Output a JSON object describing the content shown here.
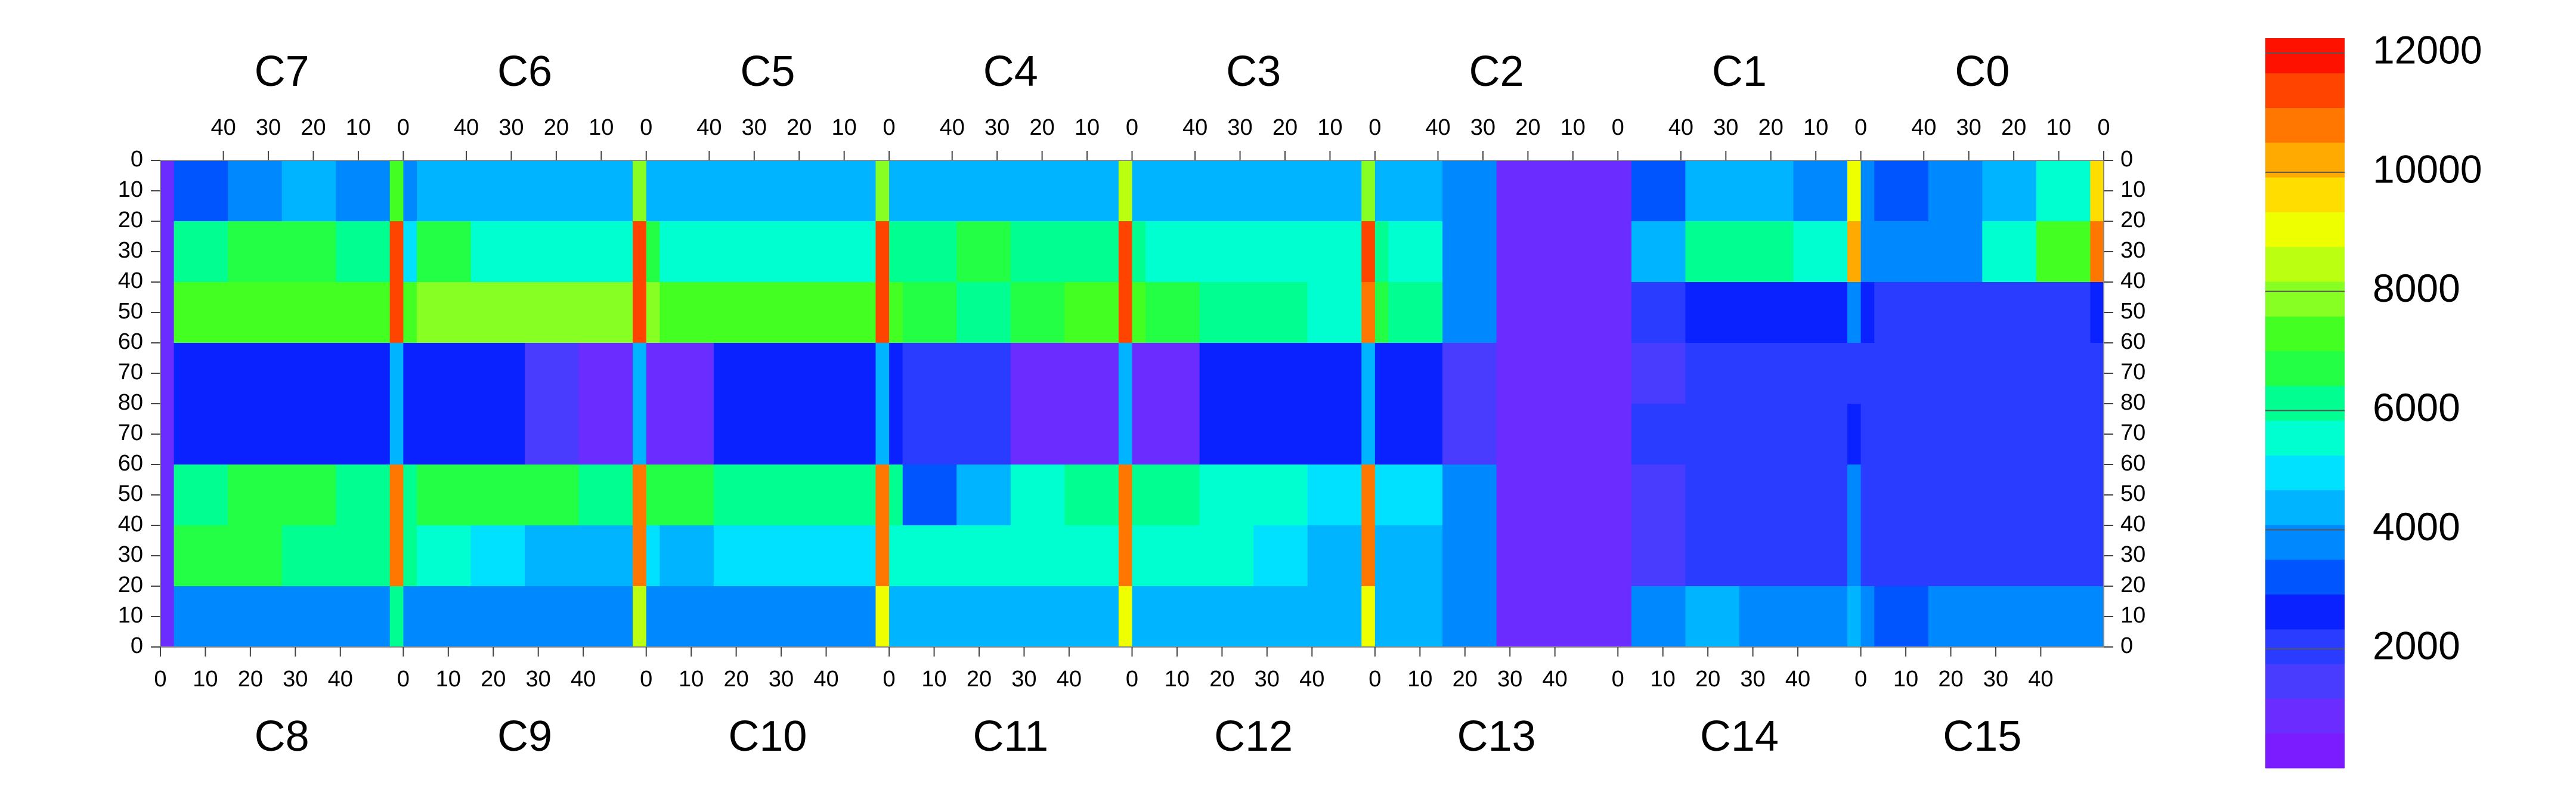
{
  "chart_data": {
    "type": "heatmap",
    "top_labels": [
      "C7",
      "C6",
      "C5",
      "C4",
      "C3",
      "C2",
      "C1",
      "C0"
    ],
    "bottom_labels": [
      "C8",
      "C9",
      "C10",
      "C11",
      "C12",
      "C13",
      "C14",
      "C15"
    ],
    "xlim": [
      0,
      432
    ],
    "ylim": [
      0,
      160
    ],
    "zlim": [
      0,
      12250
    ],
    "xbins": [
      0,
      3,
      15,
      27,
      39,
      51,
      54,
      57,
      69,
      81,
      93,
      105,
      108,
      111,
      123,
      135,
      147,
      159,
      162,
      165,
      177,
      189,
      201,
      213,
      216,
      219,
      231,
      243,
      255,
      267,
      270,
      273,
      285,
      297,
      309,
      321,
      324,
      327,
      339,
      351,
      363,
      375,
      378,
      381,
      393,
      405,
      417,
      429,
      432
    ],
    "ybins": [
      0,
      20,
      40,
      60,
      80,
      100,
      120,
      140,
      160
    ],
    "z": [
      [
        900,
        3000,
        4000,
        4500,
        3500,
        7000,
        4000,
        4500,
        4500,
        4500,
        4500,
        8000,
        4500,
        4500,
        4500,
        4500,
        4500,
        8000,
        4500,
        4500,
        4500,
        4500,
        4500,
        8500,
        4500,
        4500,
        4500,
        4500,
        4500,
        8000,
        4500,
        4500,
        3500,
        1000,
        800,
        800,
        900,
        3000,
        4500,
        4500,
        4000,
        9000,
        4000,
        3000,
        3500,
        4500,
        5500,
        9500
      ],
      [
        900,
        6000,
        6500,
        6500,
        6000,
        11500,
        5000,
        6500,
        5500,
        5500,
        5500,
        11500,
        6500,
        5500,
        5500,
        5500,
        5500,
        11500,
        6000,
        6000,
        6500,
        6000,
        6000,
        11500,
        6000,
        5500,
        5500,
        5500,
        5500,
        11500,
        6000,
        5500,
        3500,
        800,
        800,
        800,
        800,
        4500,
        6000,
        6000,
        5500,
        10000,
        4000,
        3500,
        4000,
        5500,
        7000,
        10500
      ],
      [
        900,
        7500,
        7500,
        7500,
        7500,
        11500,
        7500,
        8000,
        8000,
        8000,
        8000,
        11500,
        8000,
        7500,
        7500,
        7500,
        7500,
        11500,
        7000,
        6500,
        6000,
        6500,
        7000,
        11500,
        7000,
        6500,
        6000,
        6000,
        5500,
        11000,
        6500,
        6000,
        3500,
        800,
        800,
        800,
        800,
        2000,
        2500,
        2500,
        2500,
        3500,
        2500,
        2000,
        2000,
        2000,
        2000,
        2500
      ],
      [
        900,
        2500,
        2500,
        2500,
        2500,
        4500,
        2500,
        2500,
        2500,
        1200,
        1000,
        4500,
        1000,
        1000,
        2500,
        2500,
        2500,
        4500,
        2500,
        2000,
        2000,
        1000,
        1000,
        4500,
        1000,
        1000,
        2500,
        2500,
        2500,
        4500,
        2500,
        2500,
        1500,
        800,
        800,
        800,
        800,
        1500,
        1800,
        1800,
        1800,
        2000,
        1800,
        1800,
        1800,
        1800,
        1800,
        1800
      ],
      [
        900,
        2500,
        2500,
        2500,
        2500,
        4500,
        2500,
        2500,
        2500,
        1200,
        1000,
        4500,
        1000,
        1000,
        2500,
        2500,
        2500,
        4500,
        2500,
        2000,
        2000,
        1000,
        1000,
        4500,
        1000,
        1000,
        2500,
        2500,
        2500,
        4500,
        2500,
        2500,
        1500,
        800,
        800,
        800,
        800,
        1800,
        2000,
        2000,
        2000,
        2500,
        2000,
        1800,
        1800,
        1800,
        1800,
        1800
      ],
      [
        900,
        6000,
        6500,
        6500,
        6000,
        11000,
        6000,
        6500,
        6500,
        6500,
        6000,
        11000,
        6500,
        6500,
        6000,
        6000,
        6000,
        11000,
        6000,
        3000,
        4500,
        5500,
        6000,
        11000,
        6000,
        6000,
        5500,
        5500,
        5000,
        11000,
        5000,
        5000,
        3500,
        800,
        800,
        800,
        800,
        1500,
        2000,
        2000,
        2000,
        3500,
        2000,
        1800,
        1800,
        1800,
        1800,
        2000
      ],
      [
        900,
        6500,
        6500,
        6000,
        6000,
        11000,
        6000,
        5500,
        5000,
        4500,
        4500,
        11000,
        5000,
        4500,
        5000,
        5000,
        5000,
        11000,
        5500,
        5500,
        5500,
        5500,
        5500,
        11000,
        5500,
        5500,
        5500,
        5000,
        4500,
        11000,
        4500,
        4500,
        3500,
        800,
        800,
        800,
        800,
        1500,
        2000,
        2000,
        2000,
        4000,
        2000,
        1800,
        1800,
        1800,
        1800,
        2000
      ],
      [
        900,
        3500,
        3500,
        4000,
        3500,
        6000,
        4000,
        4000,
        3500,
        4000,
        4000,
        8500,
        4000,
        4000,
        4000,
        4000,
        4000,
        9000,
        4500,
        4500,
        4500,
        4500,
        4500,
        9000,
        4500,
        4500,
        4500,
        4500,
        4500,
        9000,
        4500,
        4500,
        3500,
        800,
        800,
        800,
        800,
        3500,
        4500,
        4000,
        4000,
        4500,
        4000,
        3000,
        3500,
        3500,
        3500,
        3500
      ]
    ],
    "colors": [
      "#7a1cff",
      "#6a2cff",
      "#4a3cff",
      "#2a3cff",
      "#0a22ff",
      "#0055ff",
      "#0088ff",
      "#00b4ff",
      "#00e0ff",
      "#00ffd0",
      "#00ff90",
      "#22ff44",
      "#44ff22",
      "#88ff22",
      "#bbff11",
      "#eeff00",
      "#ffdd00",
      "#ffaa00",
      "#ff7700",
      "#ff4400",
      "#ff1100"
    ],
    "top_xticks": [
      {
        "value": 14,
        "label": "40"
      },
      {
        "value": 24,
        "label": "30"
      },
      {
        "value": 34,
        "label": "20"
      },
      {
        "value": 44,
        "label": "10"
      },
      {
        "value": 54,
        "label": "0"
      },
      {
        "value": 68,
        "label": "40"
      },
      {
        "value": 78,
        "label": "30"
      },
      {
        "value": 88,
        "label": "20"
      },
      {
        "value": 98,
        "label": "10"
      },
      {
        "value": 108,
        "label": "0"
      },
      {
        "value": 122,
        "label": "40"
      },
      {
        "value": 132,
        "label": "30"
      },
      {
        "value": 142,
        "label": "20"
      },
      {
        "value": 152,
        "label": "10"
      },
      {
        "value": 162,
        "label": "0"
      },
      {
        "value": 176,
        "label": "40"
      },
      {
        "value": 186,
        "label": "30"
      },
      {
        "value": 196,
        "label": "20"
      },
      {
        "value": 206,
        "label": "10"
      },
      {
        "value": 216,
        "label": "0"
      },
      {
        "value": 230,
        "label": "40"
      },
      {
        "value": 240,
        "label": "30"
      },
      {
        "value": 250,
        "label": "20"
      },
      {
        "value": 260,
        "label": "10"
      },
      {
        "value": 270,
        "label": "0"
      },
      {
        "value": 284,
        "label": "40"
      },
      {
        "value": 294,
        "label": "30"
      },
      {
        "value": 304,
        "label": "20"
      },
      {
        "value": 314,
        "label": "10"
      },
      {
        "value": 324,
        "label": "0"
      },
      {
        "value": 338,
        "label": "40"
      },
      {
        "value": 348,
        "label": "30"
      },
      {
        "value": 358,
        "label": "20"
      },
      {
        "value": 368,
        "label": "10"
      },
      {
        "value": 378,
        "label": "0"
      },
      {
        "value": 392,
        "label": "40"
      },
      {
        "value": 402,
        "label": "30"
      },
      {
        "value": 412,
        "label": "20"
      },
      {
        "value": 422,
        "label": "10"
      },
      {
        "value": 432,
        "label": "0"
      }
    ],
    "bottom_xticks": [
      0,
      10,
      20,
      30,
      40,
      {
        "value": 54,
        "label": "0"
      },
      {
        "value": 64,
        "label": "10"
      },
      {
        "value": 74,
        "label": "20"
      },
      {
        "value": 84,
        "label": "30"
      },
      {
        "value": 94,
        "label": "40"
      },
      {
        "value": 108,
        "label": "0"
      },
      {
        "value": 118,
        "label": "10"
      },
      {
        "value": 128,
        "label": "20"
      },
      {
        "value": 138,
        "label": "30"
      },
      {
        "value": 148,
        "label": "40"
      },
      {
        "value": 162,
        "label": "0"
      },
      {
        "value": 172,
        "label": "10"
      },
      {
        "value": 182,
        "label": "20"
      },
      {
        "value": 192,
        "label": "30"
      },
      {
        "value": 202,
        "label": "40"
      },
      {
        "value": 216,
        "label": "0"
      },
      {
        "value": 226,
        "label": "10"
      },
      {
        "value": 236,
        "label": "20"
      },
      {
        "value": 246,
        "label": "30"
      },
      {
        "value": 256,
        "label": "40"
      },
      {
        "value": 270,
        "label": "0"
      },
      {
        "value": 280,
        "label": "10"
      },
      {
        "value": 290,
        "label": "20"
      },
      {
        "value": 300,
        "label": "30"
      },
      {
        "value": 310,
        "label": "40"
      },
      {
        "value": 324,
        "label": "0"
      },
      {
        "value": 334,
        "label": "10"
      },
      {
        "value": 344,
        "label": "20"
      },
      {
        "value": 354,
        "label": "30"
      },
      {
        "value": 364,
        "label": "40"
      },
      {
        "value": 378,
        "label": "0"
      },
      {
        "value": 388,
        "label": "10"
      },
      {
        "value": 398,
        "label": "20"
      },
      {
        "value": 408,
        "label": "30"
      },
      {
        "value": 418,
        "label": "40"
      }
    ],
    "yticks": [
      0,
      10,
      20,
      30,
      40,
      50,
      60,
      70,
      80,
      {
        "value": 90,
        "label": "70"
      },
      {
        "value": 100,
        "label": "60"
      },
      {
        "value": 110,
        "label": "50"
      },
      {
        "value": 120,
        "label": "40"
      },
      {
        "value": 130,
        "label": "30"
      },
      {
        "value": 140,
        "label": "20"
      },
      {
        "value": 150,
        "label": "10"
      },
      {
        "value": 160,
        "label": "0"
      }
    ],
    "zticks": [
      2000,
      4000,
      6000,
      8000,
      10000,
      12000
    ]
  }
}
